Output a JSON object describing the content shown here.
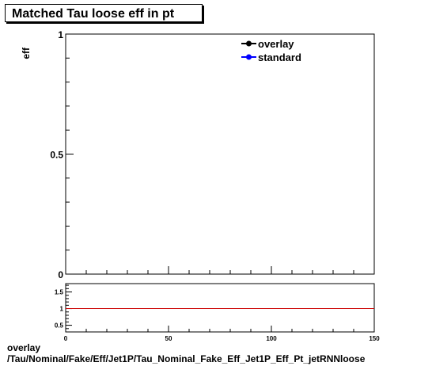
{
  "chart_data": [
    {
      "type": "line",
      "title": "Matched Tau loose eff in pt",
      "ylabel": "eff",
      "xlabel": "",
      "xlim": [
        0,
        150
      ],
      "ylim": [
        0,
        1
      ],
      "y_tick_labels": [
        "0",
        "0.5",
        "1"
      ],
      "grid": false,
      "legend_position": "top-right",
      "series": [
        {
          "name": "overlay",
          "color": "#000000",
          "x": [],
          "y": []
        },
        {
          "name": "standard",
          "color": "#0000ff",
          "x": [],
          "y": []
        }
      ]
    },
    {
      "type": "line",
      "xlim": [
        0,
        150
      ],
      "ylim": [
        0.3,
        1.75
      ],
      "x_tick_labels": [
        "0",
        "50",
        "100",
        "150"
      ],
      "y_tick_labels": [
        "0.5",
        "1",
        "1.5"
      ],
      "reference_line": {
        "y": 1,
        "color": "#cc0000"
      },
      "series": []
    }
  ],
  "footer": {
    "line1": "overlay",
    "line2": "/Tau/Nominal/Fake/Eff/Jet1P/Tau_Nominal_Fake_Eff_Jet1P_Eff_Pt_jetRNNloose"
  }
}
